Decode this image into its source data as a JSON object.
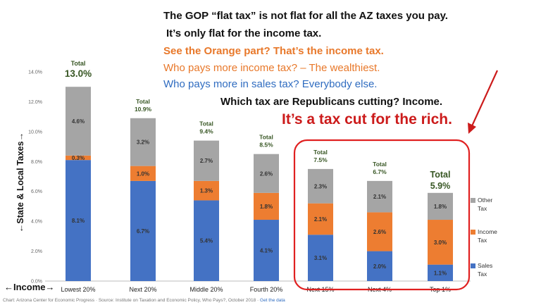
{
  "headlines": {
    "line1": "The GOP “flat tax” is not flat for all the AZ taxes you pay.",
    "line2": "It’s only flat for the income tax.",
    "line3": "See the Orange part?  That’s the income tax.",
    "line4": "Who pays more income tax? – The wealthiest.",
    "line5": "Who pays more in sales tax?  Everybody else.",
    "line6": "Which tax are Republicans cutting?  Income.",
    "line7": "It’s a tax cut for the rich."
  },
  "source": {
    "text": "Chart: Arizona Center for Economic Progress · Source: Institute on Taxation and Economic Policy, Who Pays?, October 2018 · ",
    "link": "Get the data"
  },
  "colors": {
    "sales": "#4472c4",
    "income": "#ed7d31",
    "other": "#a5a5a5",
    "total_label": "#375623",
    "highlight_circle": "#e02020",
    "arrow": "#cc1b1b"
  },
  "chart_data": {
    "type": "bar",
    "stacked": true,
    "ylabel": "←State & Local Taxes→",
    "xlabel": "←Income→",
    "ylim": [
      0,
      14
    ],
    "yticks": [
      "0.0%",
      "2.0%",
      "4.0%",
      "6.0%",
      "8.0%",
      "10.0%",
      "12.0%",
      "14.0%"
    ],
    "categories": [
      "Lowest 20%",
      "Next 20%",
      "Middle 20%",
      "Fourth 20%",
      "Next 15%",
      "Next 4%",
      "Top 1%"
    ],
    "series": [
      {
        "name": "Sales Tax",
        "values": [
          8.1,
          6.7,
          5.4,
          4.1,
          3.1,
          2.0,
          1.1
        ],
        "labels": [
          "8.1%",
          "6.7%",
          "5.4%",
          "4.1%",
          "3.1%",
          "2.0%",
          "1.1%"
        ]
      },
      {
        "name": "Income Tax",
        "values": [
          0.3,
          1.0,
          1.3,
          1.8,
          2.1,
          2.6,
          3.0
        ],
        "labels": [
          "0.3%",
          "1.0%",
          "1.3%",
          "1.8%",
          "2.1%",
          "2.6%",
          "3.0%"
        ]
      },
      {
        "name": "Other Tax",
        "values": [
          4.6,
          3.2,
          2.7,
          2.6,
          2.3,
          2.1,
          1.8
        ],
        "labels": [
          "4.6%",
          "3.2%",
          "2.7%",
          "2.6%",
          "2.3%",
          "2.1%",
          "1.8%"
        ]
      }
    ],
    "total_word": "Total",
    "totals": [
      "13.0%",
      "10.9%",
      "9.4%",
      "8.5%",
      "7.5%",
      "6.7%",
      "5.9%"
    ],
    "legend": [
      "Other Tax",
      "Income Tax",
      "Sales Tax"
    ],
    "legend_position": "right",
    "grid": false,
    "highlighted_categories": [
      "Next 15%",
      "Next 4%",
      "Top 1%"
    ]
  }
}
